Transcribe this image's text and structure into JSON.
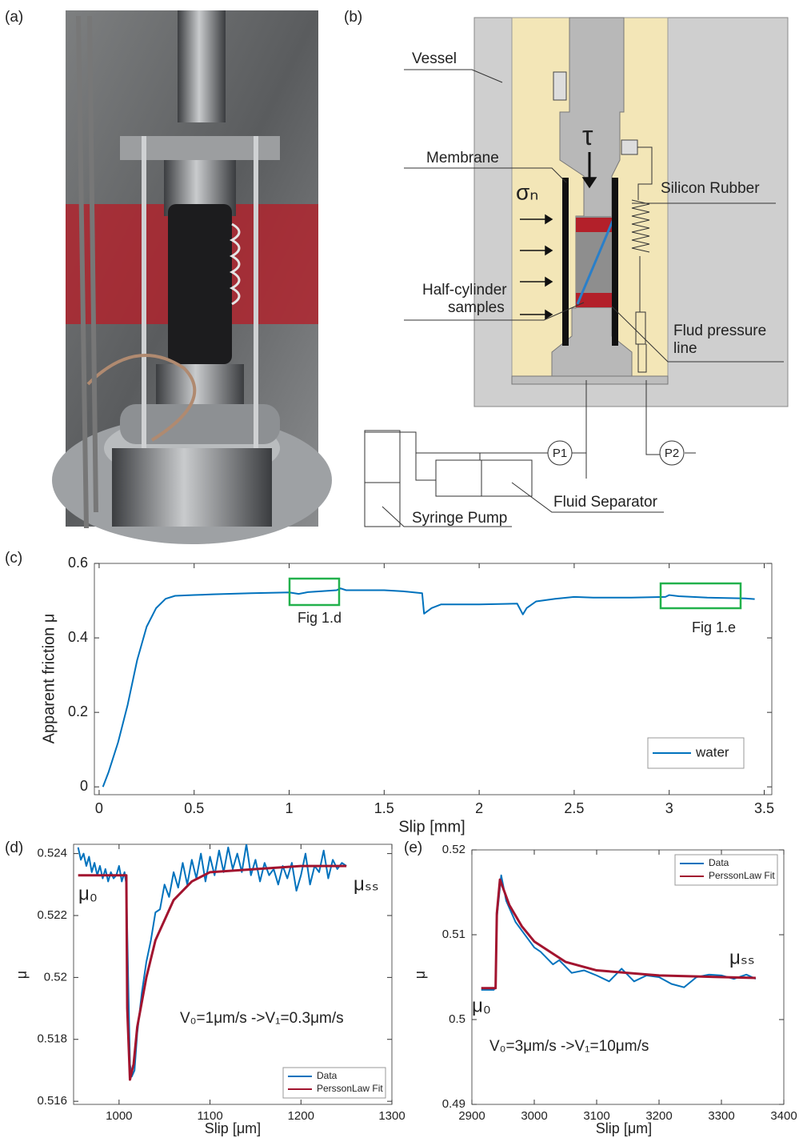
{
  "photo": {
    "panel_label": "(a)"
  },
  "diagram": {
    "panel_label": "(b)",
    "vessel": "Vessel",
    "membrane": "Membrane",
    "tau": "τ",
    "sigma": "σₙ",
    "silicon_rubber": "Silicon Rubber",
    "half_cylinder": [
      "Half-cylinder",
      "samples"
    ],
    "fluid_line": [
      "Flud pressure",
      "line"
    ],
    "p1": "P1",
    "p2": "P2",
    "fluid_separator": "Fluid Separator",
    "syringe_pump": "Syringe Pump"
  },
  "chart_data": [
    {
      "type": "line",
      "panel_label": "(c)",
      "xlabel": "Slip [mm]",
      "ylabel": "Apparent friction μ",
      "xlim": [
        -0.025,
        3.54
      ],
      "ylim": [
        -0.021,
        0.6
      ],
      "xticks": [
        0,
        0.5,
        1,
        1.5,
        2,
        2.5,
        3,
        3.5
      ],
      "yticks": [
        0,
        0.2,
        0.4,
        0.6
      ],
      "grid": false,
      "legend": "lower right",
      "annotations": [
        "Fig 1.d",
        "Fig 1.e"
      ],
      "series": [
        {
          "name": "water",
          "color": "#0072BD",
          "x": [
            0.02,
            0.05,
            0.1,
            0.15,
            0.2,
            0.25,
            0.3,
            0.35,
            0.4,
            0.5,
            0.6,
            0.8,
            1.0,
            1.05,
            1.1,
            1.25,
            1.27,
            1.3,
            1.5,
            1.6,
            1.7,
            1.71,
            1.75,
            1.8,
            2.0,
            2.2,
            2.23,
            2.25,
            2.3,
            2.4,
            2.5,
            2.6,
            2.8,
            2.98,
            3.0,
            3.05,
            3.2,
            3.4,
            3.45
          ],
          "values": [
            0,
            0.04,
            0.12,
            0.22,
            0.34,
            0.43,
            0.48,
            0.505,
            0.513,
            0.515,
            0.517,
            0.52,
            0.522,
            0.518,
            0.523,
            0.528,
            0.533,
            0.528,
            0.528,
            0.525,
            0.52,
            0.465,
            0.48,
            0.49,
            0.49,
            0.492,
            0.463,
            0.48,
            0.498,
            0.505,
            0.51,
            0.508,
            0.508,
            0.51,
            0.515,
            0.512,
            0.508,
            0.506,
            0.504
          ]
        }
      ]
    },
    {
      "type": "line",
      "panel_label": "(d)",
      "xlabel": "Slip [μm]",
      "ylabel": "μ",
      "xlim": [
        950,
        1300
      ],
      "ylim": [
        0.5159,
        0.5243
      ],
      "xticks": [
        1000,
        1100,
        1200,
        1300
      ],
      "yticks": [
        0.516,
        0.518,
        0.52,
        0.522,
        0.524
      ],
      "grid": false,
      "legend": "lower right",
      "annotations": [
        "μ₀",
        "μₛₛ",
        "V₀=1μm/s ->V₁=0.3μm/s"
      ],
      "series": [
        {
          "name": "Data",
          "color": "#0072BD",
          "x": [
            955,
            958,
            961,
            964,
            967,
            970,
            973,
            976,
            979,
            982,
            985,
            988,
            991,
            994,
            997,
            1000,
            1003,
            1006,
            1008,
            1010,
            1012,
            1014,
            1017,
            1020,
            1025,
            1030,
            1035,
            1040,
            1045,
            1050,
            1055,
            1060,
            1065,
            1070,
            1075,
            1080,
            1085,
            1090,
            1095,
            1100,
            1105,
            1110,
            1115,
            1120,
            1125,
            1130,
            1135,
            1140,
            1145,
            1150,
            1155,
            1160,
            1165,
            1170,
            1175,
            1180,
            1185,
            1190,
            1195,
            1200,
            1205,
            1210,
            1215,
            1220,
            1225,
            1230,
            1235,
            1240,
            1245,
            1250
          ],
          "values": [
            0.5242,
            0.5238,
            0.524,
            0.5236,
            0.5239,
            0.5234,
            0.5237,
            0.5233,
            0.5236,
            0.5232,
            0.5235,
            0.5231,
            0.5234,
            0.5232,
            0.5233,
            0.5236,
            0.5231,
            0.5234,
            0.523,
            0.52,
            0.5172,
            0.5168,
            0.517,
            0.5182,
            0.5195,
            0.5205,
            0.5212,
            0.5221,
            0.5222,
            0.523,
            0.5226,
            0.5234,
            0.5229,
            0.5237,
            0.523,
            0.5238,
            0.5232,
            0.524,
            0.5231,
            0.5239,
            0.5233,
            0.5241,
            0.5234,
            0.5242,
            0.5235,
            0.524,
            0.5234,
            0.5243,
            0.5233,
            0.5238,
            0.5231,
            0.5237,
            0.5233,
            0.5235,
            0.523,
            0.5236,
            0.5232,
            0.5237,
            0.5228,
            0.5233,
            0.524,
            0.523,
            0.5236,
            0.5234,
            0.5241,
            0.5232,
            0.5238,
            0.5235,
            0.5237,
            0.5236
          ]
        },
        {
          "name": "PerssonLaw Fit",
          "color": "#A2142F",
          "x": [
            955,
            1008,
            1009,
            1012,
            1016,
            1020,
            1030,
            1040,
            1060,
            1080,
            1100,
            1150,
            1200,
            1250
          ],
          "values": [
            0.5233,
            0.5233,
            0.519,
            0.5167,
            0.5172,
            0.5184,
            0.52,
            0.5212,
            0.5225,
            0.5231,
            0.5234,
            0.5235,
            0.5236,
            0.5236
          ]
        }
      ]
    },
    {
      "type": "line",
      "panel_label": "(e)",
      "xlabel": "Slip [μm]",
      "ylabel": "μ",
      "xlim": [
        2900,
        3400
      ],
      "ylim": [
        0.49,
        0.52
      ],
      "xticks": [
        2900,
        3000,
        3100,
        3200,
        3300,
        3400
      ],
      "yticks": [
        0.49,
        0.5,
        0.51,
        0.52
      ],
      "grid": false,
      "legend": "upper right",
      "annotations": [
        "μ₀",
        "μₛₛ",
        "V₀=3μm/s ->V₁=10μm/s"
      ],
      "series": [
        {
          "name": "Data",
          "color": "#0072BD",
          "x": [
            2915,
            2935,
            2938,
            2940,
            2947,
            2955,
            2970,
            2990,
            3000,
            3010,
            3030,
            3040,
            3060,
            3080,
            3100,
            3120,
            3140,
            3160,
            3180,
            3200,
            3220,
            3240,
            3260,
            3280,
            3300,
            3320,
            3340,
            3355
          ],
          "values": [
            0.5035,
            0.5035,
            0.5038,
            0.512,
            0.517,
            0.514,
            0.5115,
            0.5095,
            0.5085,
            0.508,
            0.5065,
            0.507,
            0.5055,
            0.5058,
            0.5052,
            0.5045,
            0.506,
            0.5045,
            0.5052,
            0.505,
            0.5042,
            0.5038,
            0.505,
            0.5053,
            0.5052,
            0.5048,
            0.5053,
            0.5048
          ]
        },
        {
          "name": "PerssonLaw Fit",
          "color": "#A2142F",
          "x": [
            2915,
            2938,
            2940,
            2945,
            2960,
            2980,
            3000,
            3050,
            3100,
            3200,
            3355
          ],
          "values": [
            0.5037,
            0.5037,
            0.5125,
            0.5165,
            0.5135,
            0.511,
            0.5092,
            0.5068,
            0.5058,
            0.5052,
            0.5049
          ]
        }
      ]
    }
  ]
}
